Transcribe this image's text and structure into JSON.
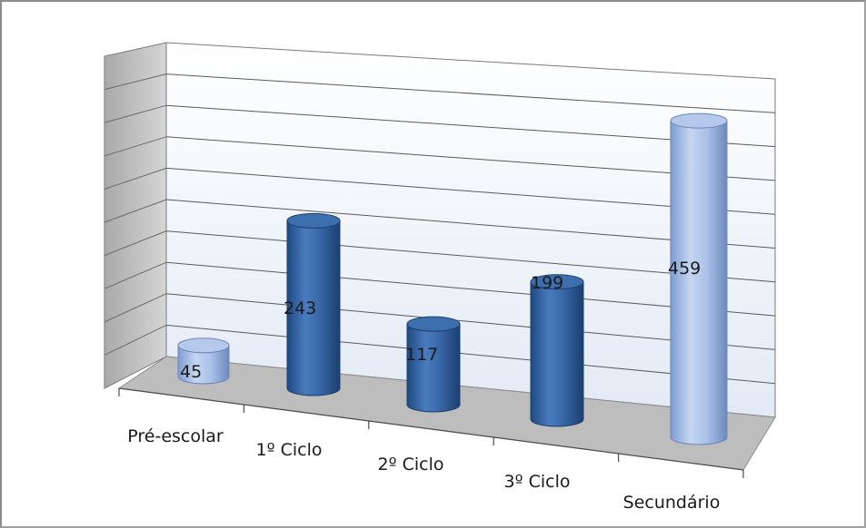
{
  "chart_data": {
    "type": "bar",
    "style": "3d-cylinder",
    "categories": [
      "Pré-escolar",
      "1º Ciclo",
      "2º Ciclo",
      "3º Ciclo",
      "Secundário"
    ],
    "values": [
      45,
      243,
      117,
      199,
      459
    ],
    "data_labels": [
      "45",
      "243",
      "117",
      "199",
      "459"
    ],
    "ylim": [
      0,
      500
    ],
    "grid": true,
    "legend": "none",
    "colors": {
      "dark": "#2e5f9e",
      "light": "#9db7e6",
      "wall": "#e8eef6",
      "floor": "#b9b9b9",
      "side_wall": "#bdbdbd"
    },
    "bar_shades": [
      "light",
      "dark",
      "dark",
      "dark",
      "light"
    ]
  }
}
